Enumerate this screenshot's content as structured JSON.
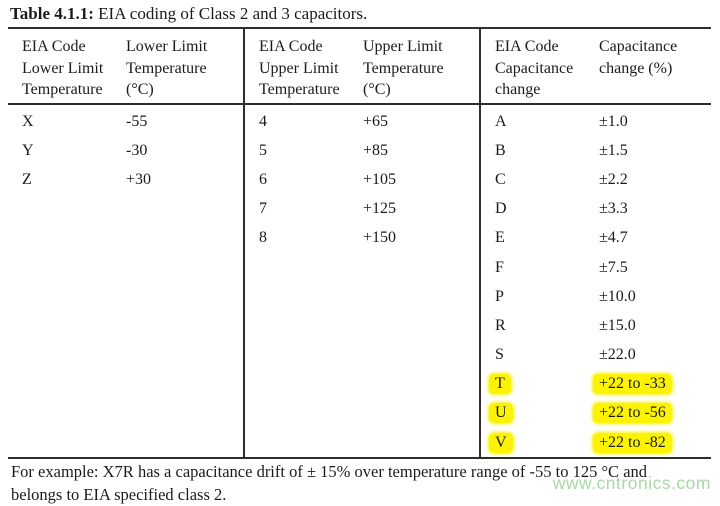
{
  "caption": {
    "bold": "Table 4.1.1:",
    "rest": " EIA coding of Class 2 and 3 capacitors."
  },
  "table": {
    "sections": [
      {
        "name": "lower-limit",
        "headers": [
          "EIA Code\nLower Limit\nTemperature",
          "Lower Limit\nTemperature\n(°C)"
        ],
        "rows": [
          {
            "code": "X",
            "value": "-55",
            "highlight": false
          },
          {
            "code": "Y",
            "value": "-30",
            "highlight": false
          },
          {
            "code": "Z",
            "value": "+30",
            "highlight": false
          }
        ]
      },
      {
        "name": "upper-limit",
        "headers": [
          "EIA Code\nUpper Limit\nTemperature",
          "Upper Limit\nTemperature\n(°C)"
        ],
        "rows": [
          {
            "code": "4",
            "value": "+65",
            "highlight": false
          },
          {
            "code": "5",
            "value": "+85",
            "highlight": false
          },
          {
            "code": "6",
            "value": "+105",
            "highlight": false
          },
          {
            "code": "7",
            "value": "+125",
            "highlight": false
          },
          {
            "code": "8",
            "value": "+150",
            "highlight": false
          }
        ]
      },
      {
        "name": "capacitance-change",
        "headers": [
          "EIA Code\nCapacitance\nchange",
          "Capacitance\nchange (%)"
        ],
        "rows": [
          {
            "code": "A",
            "value": "±1.0",
            "highlight": false
          },
          {
            "code": "B",
            "value": "±1.5",
            "highlight": false
          },
          {
            "code": "C",
            "value": "±2.2",
            "highlight": false
          },
          {
            "code": "D",
            "value": "±3.3",
            "highlight": false
          },
          {
            "code": "E",
            "value": "±4.7",
            "highlight": false
          },
          {
            "code": "F",
            "value": "±7.5",
            "highlight": false
          },
          {
            "code": "P",
            "value": "±10.0",
            "highlight": false
          },
          {
            "code": "R",
            "value": "±15.0",
            "highlight": false
          },
          {
            "code": "S",
            "value": "±22.0",
            "highlight": false
          },
          {
            "code": "T",
            "value": "+22 to -33",
            "highlight": true
          },
          {
            "code": "U",
            "value": "+22 to -56",
            "highlight": true
          },
          {
            "code": "V",
            "value": "+22 to -82",
            "highlight": true
          }
        ]
      }
    ]
  },
  "footer": {
    "text": "For example: X7R has a capacitance drift of ± 15% over temperature range of -55 to 125 °C and\nbelongs to EIA specified class 2."
  },
  "watermark": {
    "text": "www.cntronics.com"
  },
  "colors": {
    "highlight": "#fcf303",
    "rule": "#2e2e2e",
    "watermark": "#a8d8a8",
    "text": "#1b1b1b"
  }
}
